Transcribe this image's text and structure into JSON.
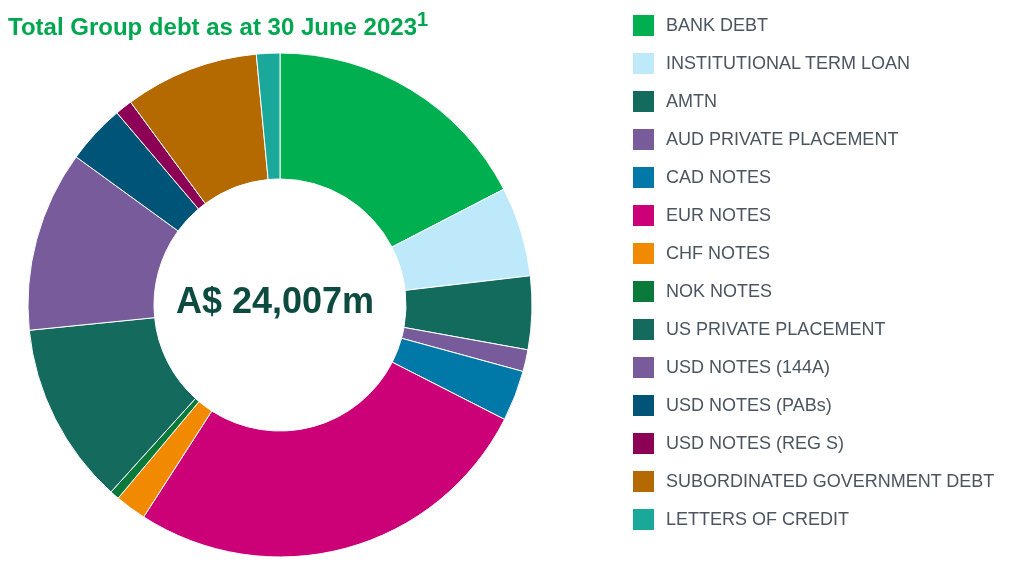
{
  "chart_data": {
    "type": "donut",
    "title": "Total Group debt as at 30 June 2023$^{1}$",
    "categories": [
      "BANK DEBT",
      "INSTITUTIONAL TERM LOAN",
      "AMTN",
      "AUD PRIVATE PLACEMENT",
      "CAD NOTES",
      "EUR NOTES",
      "CHF NOTES",
      "NOK NOTES",
      "US PRIVATE PLACEMENT",
      "USD NOTES (144A)",
      "USD NOTES (PABs)",
      "USD NOTES (REG S)",
      "SUBORDINATED GOVERNMENT DEBT",
      "LETTERS OF CREDIT"
    ],
    "values": [
      17.4,
      5.75,
      4.7,
      1.4,
      3.25,
      26.6,
      2,
      0.6,
      11.7,
      11.6,
      3.8,
      1.1,
      8.6,
      1.5
    ],
    "colors": [
      "#00b050",
      "#bde9fb",
      "#136b5e",
      "#775b9a",
      "#0079a8",
      "#cc0077",
      "#f18a00",
      "#0a7a3b",
      "#146b5d",
      "#775b9a",
      "#005478",
      "#8c0056",
      "#b46a00",
      "#1aa89a"
    ],
    "annotations": [
      "A$ 24,007m"
    ],
    "legend": "right"
  }
}
